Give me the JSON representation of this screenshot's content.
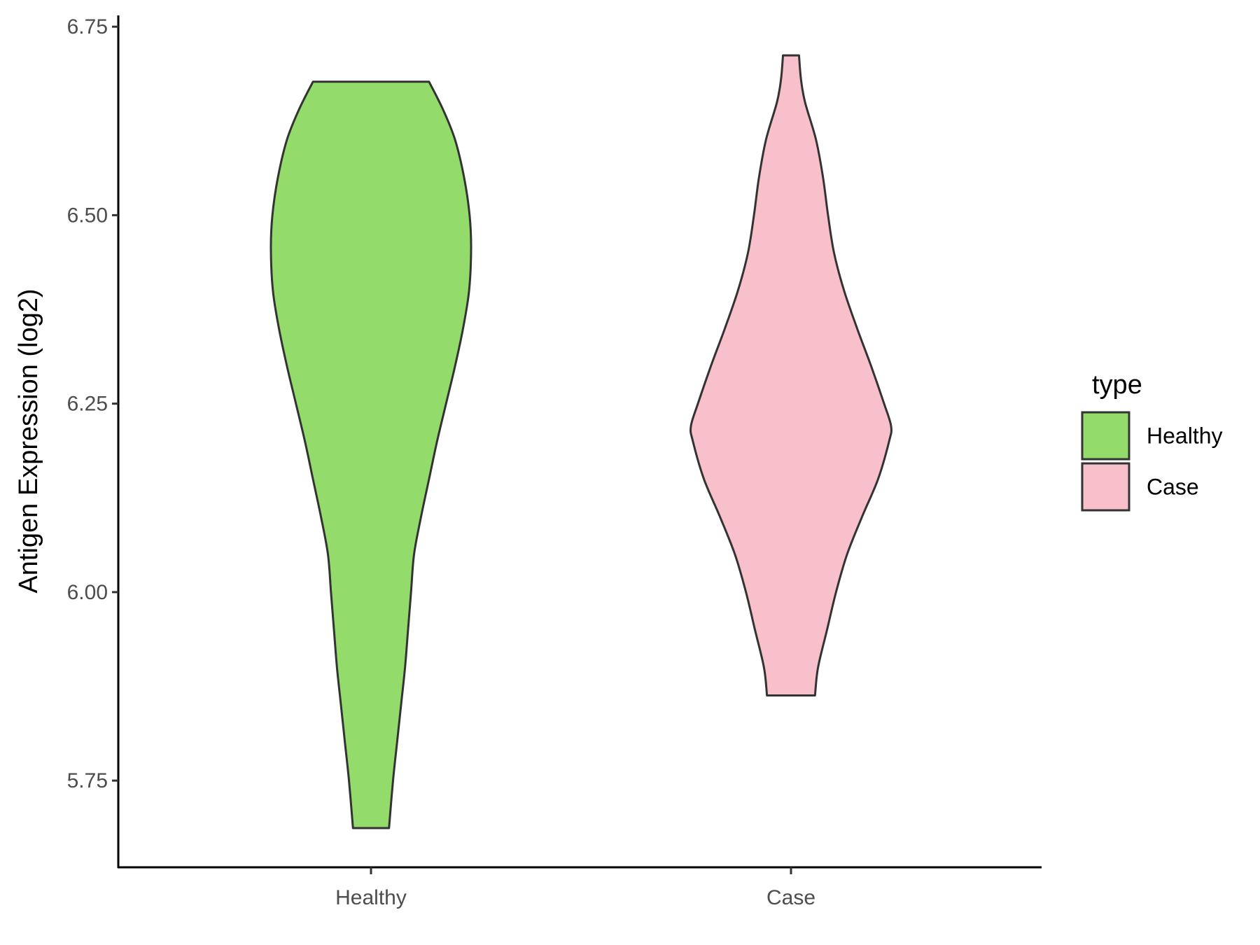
{
  "chart_data": {
    "type": "violin",
    "ylabel": "Antigen Expression (log2)",
    "xlabel": "",
    "categories": [
      "Healthy",
      "Case"
    ],
    "yticks": [
      "5.75",
      "6.00",
      "6.25",
      "6.50",
      "6.75"
    ],
    "ylim": [
      5.635,
      6.765
    ],
    "grid": false,
    "legend": {
      "title": "type",
      "position": "right",
      "items": [
        {
          "label": "Healthy",
          "color": "#93dc6b"
        },
        {
          "label": "Case",
          "color": "#f8c0cb"
        }
      ]
    },
    "series": [
      {
        "category": "Healthy",
        "color": "#93dc6b",
        "min": 5.687,
        "max": 6.677,
        "profile": [
          [
            6.677,
            0.58
          ],
          [
            6.64,
            0.72
          ],
          [
            6.6,
            0.84
          ],
          [
            6.55,
            0.93
          ],
          [
            6.5,
            0.985
          ],
          [
            6.455,
            1.0
          ],
          [
            6.4,
            0.98
          ],
          [
            6.35,
            0.92
          ],
          [
            6.3,
            0.84
          ],
          [
            6.25,
            0.75
          ],
          [
            6.2,
            0.66
          ],
          [
            6.15,
            0.58
          ],
          [
            6.1,
            0.5
          ],
          [
            6.05,
            0.43
          ],
          [
            6.0,
            0.4
          ],
          [
            5.95,
            0.37
          ],
          [
            5.9,
            0.34
          ],
          [
            5.85,
            0.3
          ],
          [
            5.8,
            0.26
          ],
          [
            5.75,
            0.22
          ],
          [
            5.687,
            0.18
          ]
        ]
      },
      {
        "category": "Case",
        "color": "#f8c0cb",
        "min": 5.863,
        "max": 6.712,
        "profile": [
          [
            6.712,
            0.08
          ],
          [
            6.68,
            0.1
          ],
          [
            6.65,
            0.14
          ],
          [
            6.6,
            0.25
          ],
          [
            6.55,
            0.32
          ],
          [
            6.5,
            0.37
          ],
          [
            6.45,
            0.43
          ],
          [
            6.4,
            0.53
          ],
          [
            6.35,
            0.66
          ],
          [
            6.3,
            0.8
          ],
          [
            6.25,
            0.93
          ],
          [
            6.22,
            1.0
          ],
          [
            6.2,
            0.98
          ],
          [
            6.15,
            0.87
          ],
          [
            6.1,
            0.71
          ],
          [
            6.05,
            0.56
          ],
          [
            6.0,
            0.45
          ],
          [
            5.95,
            0.36
          ],
          [
            5.9,
            0.27
          ],
          [
            5.863,
            0.24
          ]
        ]
      }
    ]
  }
}
